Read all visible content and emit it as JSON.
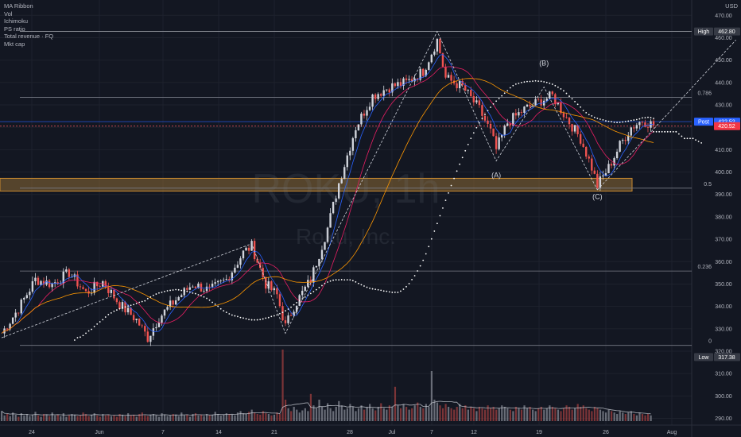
{
  "indicators": [
    "MA Ribbon",
    "Vol",
    "Ichimoku",
    "PS ratio",
    "Total revenue · FQ",
    "Mkt cap"
  ],
  "watermark": {
    "title": "ROKU, 1h",
    "subtitle": "Roku, Inc."
  },
  "currency": "USD",
  "colors": {
    "background": "#131722",
    "grid": "#1e222d",
    "up": "#d1d4dc",
    "down": "#ef5350",
    "ma_fast": "#2962ff",
    "ma_mid": "#e91e63",
    "ma_slow": "#ff9800",
    "fib_line": "#787b86",
    "zone": "#8d6a34",
    "post_line": "#2962ff",
    "last_line": "#f7525f"
  },
  "chart_data": {
    "type": "candlestick",
    "ylim": [
      287,
      474
    ],
    "y_ticks": [
      290,
      300,
      310,
      320,
      330,
      340,
      350,
      360,
      370,
      380,
      390,
      400,
      410,
      420,
      430,
      440,
      450,
      460,
      470
    ],
    "x_ticks": [
      "24",
      "Jun",
      "7",
      "14",
      "21",
      "28",
      "Jul",
      "7",
      "12",
      "19",
      "26",
      "Aug"
    ],
    "price_labels": [
      {
        "name": "High",
        "value": "462.80",
        "y": 462.8
      },
      {
        "name": "Post",
        "value": "422.52",
        "y": 422.52
      },
      {
        "name": "",
        "value": "420.52",
        "y": 420.52
      },
      {
        "name": "Low",
        "value": "317.38",
        "y": 317.38
      }
    ],
    "fib_levels": [
      {
        "label": "0.786",
        "value": 433.4
      },
      {
        "label": "0.5",
        "value": 392.8
      },
      {
        "label": "0.236",
        "value": 355.8
      },
      {
        "label": "0",
        "value": 322.6
      }
    ],
    "support_zone": [
      391.5,
      397.2
    ],
    "wave_labels": [
      {
        "label": "(A)",
        "bar": 176,
        "value": 397.5
      },
      {
        "label": "(B)",
        "bar": 193,
        "value": 447.5
      },
      {
        "label": "(C)",
        "bar": 212,
        "value": 388.0
      }
    ],
    "ohlc_keypoints": [
      [
        0,
        328
      ],
      [
        6,
        339
      ],
      [
        12,
        352
      ],
      [
        18,
        350
      ],
      [
        24,
        355
      ],
      [
        30,
        346
      ],
      [
        36,
        351
      ],
      [
        42,
        341
      ],
      [
        48,
        334
      ],
      [
        52,
        326
      ],
      [
        56,
        335
      ],
      [
        62,
        343
      ],
      [
        68,
        350
      ],
      [
        74,
        347
      ],
      [
        80,
        352
      ],
      [
        86,
        364
      ],
      [
        89,
        367
      ],
      [
        94,
        350
      ],
      [
        98,
        345
      ],
      [
        101,
        331
      ],
      [
        104,
        340
      ],
      [
        110,
        352
      ],
      [
        116,
        375
      ],
      [
        120,
        395
      ],
      [
        126,
        420
      ],
      [
        132,
        434
      ],
      [
        138,
        438
      ],
      [
        144,
        440
      ],
      [
        150,
        445
      ],
      [
        155,
        459
      ],
      [
        158,
        442
      ],
      [
        164,
        438
      ],
      [
        170,
        428
      ],
      [
        174,
        418
      ],
      [
        176,
        410
      ],
      [
        180,
        422
      ],
      [
        186,
        428
      ],
      [
        192,
        432
      ],
      [
        196,
        434
      ],
      [
        200,
        426
      ],
      [
        206,
        415
      ],
      [
        210,
        402
      ],
      [
        212,
        394
      ],
      [
        216,
        402
      ],
      [
        220,
        412
      ],
      [
        224,
        420
      ],
      [
        228,
        423
      ],
      [
        232,
        421
      ]
    ],
    "volume_heights_pct": [
      14,
      8,
      10,
      7,
      12,
      9,
      6,
      11,
      8,
      10,
      7,
      9,
      13,
      8,
      6,
      10,
      9,
      7,
      12,
      8,
      9,
      7,
      11,
      6,
      8,
      10,
      9,
      7,
      8,
      12,
      10,
      7,
      9,
      11,
      8,
      6,
      10,
      8,
      9,
      7,
      8,
      6,
      10,
      9,
      7,
      11,
      8,
      9,
      6,
      10,
      12,
      8,
      7,
      9,
      10,
      8,
      6,
      11,
      9,
      7,
      8,
      10,
      9,
      7,
      12,
      8,
      9,
      6,
      10,
      11,
      8,
      9,
      7,
      10,
      8,
      9,
      13,
      10,
      8,
      9,
      11,
      10,
      9,
      8,
      12,
      14,
      11,
      10,
      13,
      16,
      12,
      10,
      9,
      14,
      11,
      10,
      8,
      9,
      12,
      10,
      100,
      30,
      18,
      14,
      20,
      16,
      12,
      15,
      18,
      14,
      38,
      22,
      18,
      30,
      20,
      16,
      25,
      18,
      14,
      20,
      28,
      22,
      16,
      18,
      24,
      20,
      14,
      18,
      22,
      16,
      20,
      24,
      18,
      15,
      20,
      25,
      18,
      16,
      22,
      20,
      48,
      22,
      18,
      24,
      20,
      16,
      18,
      22,
      26,
      20,
      18,
      24,
      20,
      70,
      30,
      26,
      22,
      18,
      24,
      20,
      18,
      16,
      20,
      24,
      18,
      22,
      16,
      20,
      18,
      14,
      20,
      18,
      16,
      22,
      18,
      20,
      16,
      18,
      22,
      20,
      18,
      16,
      14,
      20,
      18,
      16,
      22,
      18,
      20,
      16,
      14,
      18,
      20,
      16,
      18,
      22,
      20,
      18,
      16,
      14,
      18,
      22,
      20,
      16,
      18,
      24,
      20,
      22,
      18,
      16,
      14,
      20,
      18,
      16,
      14,
      12,
      16,
      14,
      12,
      10,
      14,
      12,
      10,
      12,
      14,
      10,
      8,
      12,
      10,
      8,
      10,
      8
    ],
    "ichimoku_forecast": [
      [
        232,
        418
      ],
      [
        236,
        418
      ],
      [
        240,
        418
      ],
      [
        243,
        415
      ],
      [
        246,
        415
      ],
      [
        249,
        413
      ]
    ],
    "projection_line": [
      [
        212,
        392
      ],
      [
        250,
        459
      ]
    ]
  }
}
